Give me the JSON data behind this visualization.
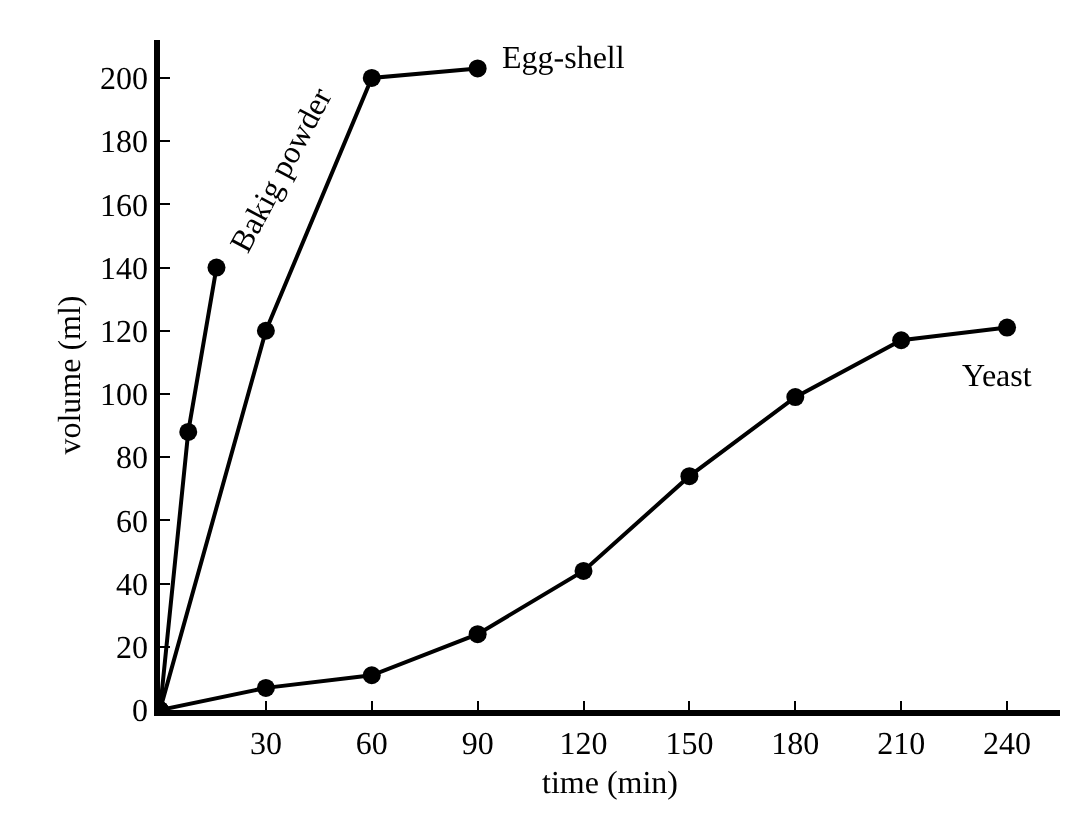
{
  "chart_data": {
    "type": "line",
    "xlabel": "time (min)",
    "ylabel": "volume (ml)",
    "xlim": [
      0,
      255
    ],
    "ylim": [
      0,
      212
    ],
    "xticks": [
      30,
      60,
      90,
      120,
      150,
      180,
      210,
      240
    ],
    "yticks": [
      0,
      20,
      40,
      60,
      80,
      100,
      120,
      140,
      160,
      180,
      200
    ],
    "grid": false,
    "legend": false,
    "marker": "circle",
    "line_style": "solid",
    "series": [
      {
        "name": "Bakig powder",
        "color": "#000000",
        "x": [
          0,
          8,
          16
        ],
        "values": [
          0,
          88,
          140
        ]
      },
      {
        "name": "Egg-shell",
        "color": "#000000",
        "x": [
          0,
          30,
          60,
          90
        ],
        "values": [
          0,
          120,
          200,
          203
        ]
      },
      {
        "name": "Yeast",
        "color": "#000000",
        "x": [
          0,
          30,
          60,
          90,
          120,
          150,
          180,
          210,
          240
        ],
        "values": [
          0,
          7,
          11,
          24,
          44,
          74,
          99,
          117,
          121
        ]
      }
    ]
  }
}
